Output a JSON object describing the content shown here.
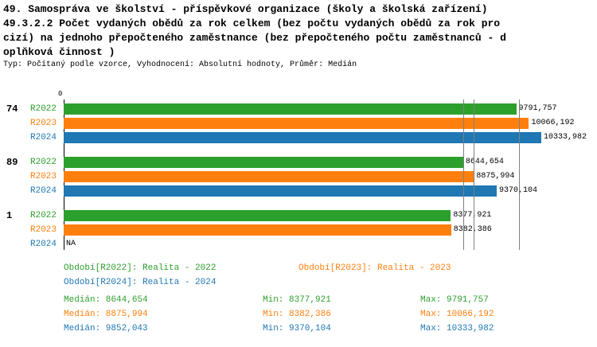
{
  "title_lines": [
    "49. Samospráva ve školství - příspěvkové organizace (školy a školská zařízení)",
    "49.3.2.2 Počet vydaných obědů za rok celkem (bez počtu vydaných obědů za rok pro",
    "cizí) na jednoho přepočteného zaměstnance (bez přepočteného počtu zaměstnanců - d",
    "oplňková činnost )"
  ],
  "subtitle": "Typ: Počítaný podle vzorce, Vyhodnocení: Absolutní hodnoty, Průměr: Medián",
  "colors": {
    "R2022": "#2ca02c",
    "R2023": "#ff7f0e",
    "R2024": "#1f77b4",
    "median_line": "#808080",
    "axis": "#000000",
    "value_label": "#000000"
  },
  "chart_data": {
    "type": "bar",
    "orientation": "horizontal",
    "title": "49.3.2.2 Počet vydaných obědů za rok celkem (bez počtu vydaných obědů za rok pro cizí) na jednoho přepočteného zaměstnance (bez přepočteného počtu zaměstnanců - doplňková činnost )",
    "axis": {
      "origin_label": "0",
      "xmin": 0,
      "xmax": 10334
    },
    "series_names": [
      "R2022",
      "R2023",
      "R2024"
    ],
    "groups": [
      {
        "label": "74",
        "values": [
          9791.757,
          10066.192,
          10333.982
        ],
        "value_labels": [
          "9791,757",
          "10066,192",
          "10333,982"
        ]
      },
      {
        "label": "89",
        "values": [
          8644.654,
          8875.994,
          9370.104
        ],
        "value_labels": [
          "8644,654",
          "8875,994",
          "9370,104"
        ]
      },
      {
        "label": "1",
        "values": [
          8377.921,
          8382.386,
          null
        ],
        "value_labels": [
          "8377,921",
          "8382,386",
          "NA"
        ]
      }
    ],
    "median_lines": [
      8644.654,
      8875.994,
      9852.043
    ],
    "grid": false,
    "legend_position": "bottom"
  },
  "legend": {
    "periods": [
      {
        "series": "R2022",
        "label": "Období[R2022]: Realita - 2022"
      },
      {
        "series": "R2023",
        "label": "Období[R2023]: Realita - 2023"
      },
      {
        "series": "R2024",
        "label": "Období[R2024]: Realita - 2024"
      }
    ],
    "stats": [
      {
        "series": "R2022",
        "median": "Medián: 8644,654",
        "min": "Min: 8377,921",
        "max": "Max: 9791,757"
      },
      {
        "series": "R2023",
        "median": "Medián: 8875,994",
        "min": "Min: 8382,386",
        "max": "Max: 10066,192"
      },
      {
        "series": "R2024",
        "median": "Medián: 9852,043",
        "min": "Min: 9370,104",
        "max": "Max: 10333,982"
      }
    ]
  }
}
